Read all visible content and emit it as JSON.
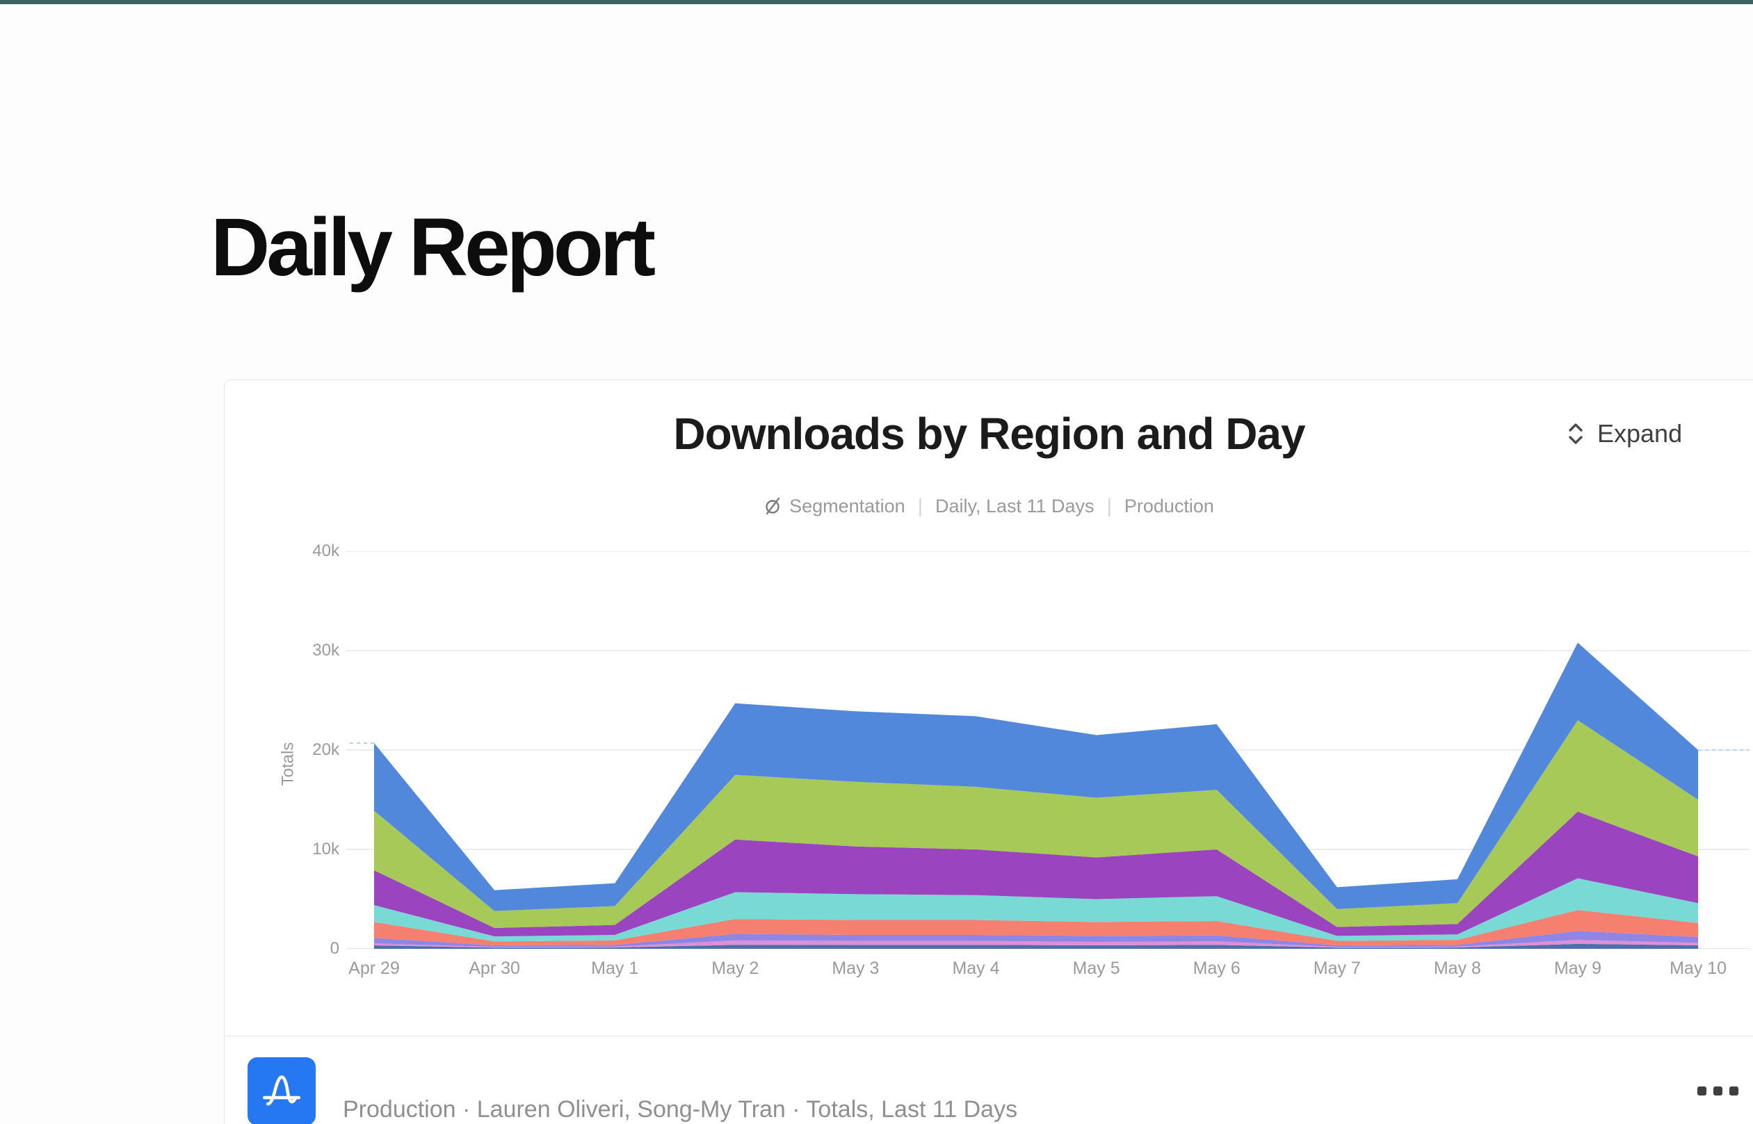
{
  "page": {
    "title": "Daily Report",
    "topbar_color": "#3e5f63"
  },
  "card": {
    "chart_title": "Downloads by Region and Day",
    "expand_label": "Expand",
    "meta": {
      "type_label": "Segmentation",
      "range_label": "Daily, Last 11 Days",
      "env_label": "Production",
      "separator": "|"
    },
    "footer": {
      "app_icon": "amplitude-logo",
      "description": "Production · Lauren Oliveri, Song-My Tran · Totals, Last 11 Days",
      "more_icon": "three-dots-menu"
    }
  },
  "chart_data": {
    "type": "area",
    "stacked": true,
    "title": "Downloads by Region and Day",
    "xlabel": "",
    "ylabel": "Totals",
    "ylim": [
      0,
      40000
    ],
    "y_ticks": [
      "0",
      "10k",
      "20k",
      "30k",
      "40k"
    ],
    "grid": true,
    "legend_position": "none",
    "categories": [
      "Apr 29",
      "Apr 30",
      "May 1",
      "May 2",
      "May 3",
      "May 4",
      "May 5",
      "May 6",
      "May 7",
      "May 8",
      "May 9",
      "May 10"
    ],
    "series": [
      {
        "name": "slate-blue",
        "color": "#4e6fae",
        "values": [
          350,
          120,
          130,
          400,
          400,
          400,
          350,
          400,
          120,
          130,
          500,
          350
        ]
      },
      {
        "name": "pink",
        "color": "#e08ed6",
        "values": [
          200,
          80,
          90,
          450,
          400,
          400,
          350,
          350,
          80,
          90,
          400,
          250
        ]
      },
      {
        "name": "periwinkle",
        "color": "#8e85e4",
        "values": [
          550,
          150,
          180,
          650,
          600,
          600,
          600,
          600,
          150,
          180,
          900,
          600
        ]
      },
      {
        "name": "salmon",
        "color": "#f5806f",
        "values": [
          1600,
          400,
          450,
          1500,
          1500,
          1500,
          1400,
          1450,
          450,
          500,
          2100,
          1400
        ]
      },
      {
        "name": "teal",
        "color": "#79d9d5",
        "values": [
          1700,
          500,
          550,
          2700,
          2600,
          2500,
          2300,
          2500,
          500,
          550,
          3200,
          2000
        ]
      },
      {
        "name": "purple",
        "color": "#9b44c0",
        "values": [
          3500,
          850,
          1000,
          5300,
          4800,
          4600,
          4200,
          4700,
          900,
          1050,
          6700,
          4700
        ]
      },
      {
        "name": "green",
        "color": "#a6c957",
        "values": [
          6000,
          1700,
          1900,
          6500,
          6500,
          6300,
          6000,
          6000,
          1800,
          2100,
          9200,
          5700
        ]
      },
      {
        "name": "blue",
        "color": "#5288db",
        "values": [
          6800,
          2100,
          2300,
          7200,
          7100,
          7100,
          6300,
          6600,
          2200,
          2400,
          7800,
          5000
        ]
      }
    ],
    "totals": [
      20700,
      5900,
      6600,
      24700,
      23900,
      23400,
      21500,
      22600,
      6200,
      7000,
      30800,
      20000
    ],
    "gridline_color": "#ececec",
    "guide_dash_color": "#b9d2f2"
  }
}
